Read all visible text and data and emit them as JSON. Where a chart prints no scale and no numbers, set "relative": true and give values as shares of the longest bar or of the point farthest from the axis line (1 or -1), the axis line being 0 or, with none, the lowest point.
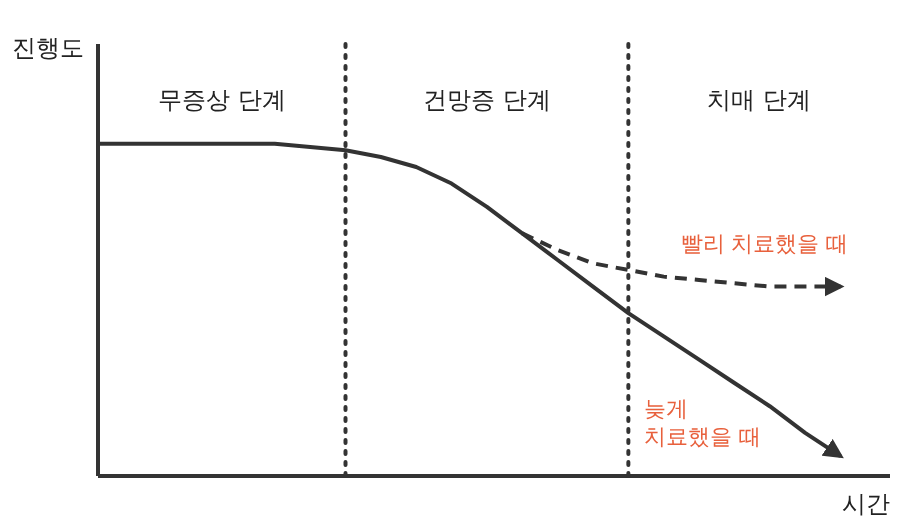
{
  "chart_data": {
    "type": "line",
    "relative": true,
    "xlabel": "시간",
    "ylabel": "진행도",
    "categories": [
      null,
      null,
      null,
      null,
      null,
      null,
      null,
      null,
      null,
      null,
      null,
      null,
      null,
      null,
      null,
      null,
      null,
      null,
      null,
      null,
      null,
      null
    ],
    "series": [
      {
        "name": "늦게 치료했을 때",
        "color": "#333333",
        "line_style": "solid",
        "values": [
          1,
          1,
          1,
          1,
          1,
          1,
          0.99,
          0.98,
          0.96,
          0.93,
          0.88,
          0.81,
          0.73,
          0.65,
          0.57,
          0.49,
          0.42,
          0.35,
          0.28,
          0.21,
          0.13,
          0.06
        ]
      },
      {
        "name": "빨리 치료했을 때",
        "color": "#333333",
        "line_style": "dashed",
        "values": [
          null,
          null,
          null,
          null,
          null,
          null,
          null,
          null,
          null,
          null,
          null,
          null,
          0.73,
          0.68,
          0.64,
          0.62,
          0.6,
          0.59,
          0.58,
          0.57,
          0.57,
          0.57
        ]
      }
    ],
    "annotations": [
      "무증상 단계",
      "건망증 단계",
      "치매 단계"
    ],
    "marker": "none"
  }
}
